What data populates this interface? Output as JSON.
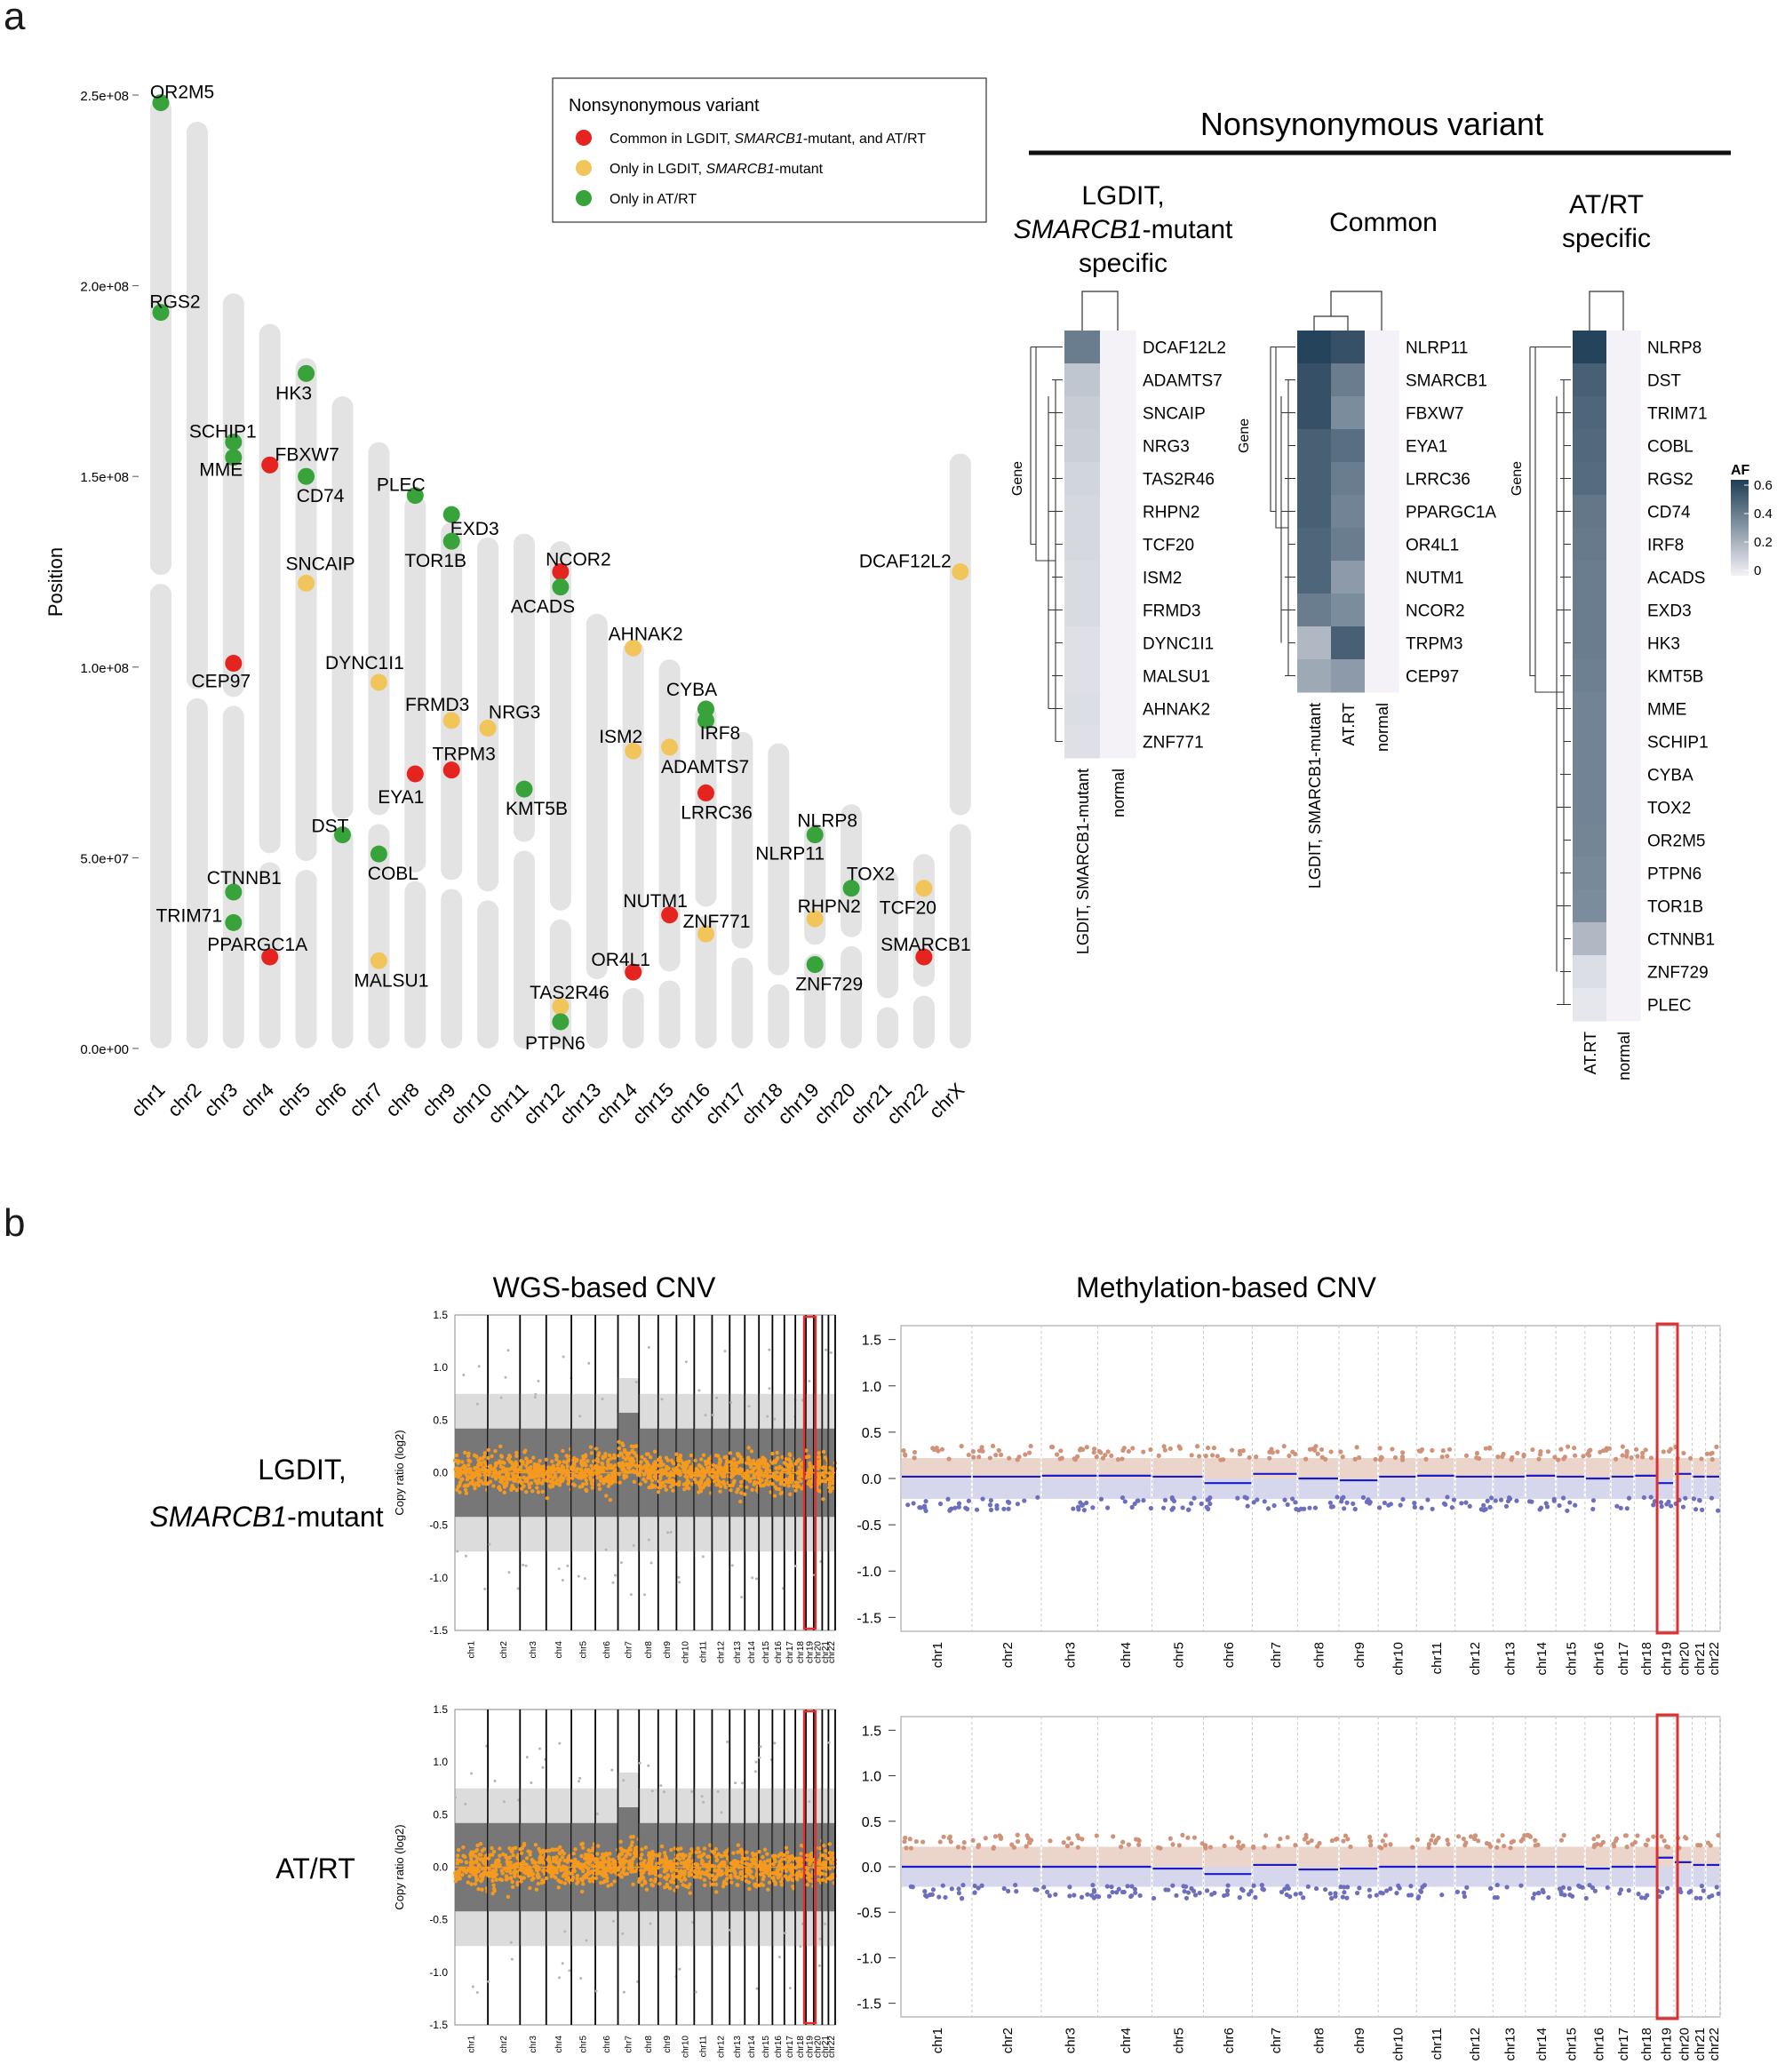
{
  "panel_labels": {
    "a": "a",
    "b": "b"
  },
  "colors": {
    "common": "#e52420",
    "lgdit": "#f2c55a",
    "atrt": "#37a33a",
    "chromosome": "#e3e3e3",
    "wgs_points": "#f59a1e",
    "highlight": "#e03030"
  },
  "ideogram": {
    "ylabel": "Position",
    "ytick_labels": [
      "0.0e+00",
      "5.0e+07",
      "1.0e+08",
      "1.5e+08",
      "2.0e+08",
      "2.5e+08"
    ]
  },
  "legend": {
    "title": "Nonsynonymous variant",
    "items": [
      {
        "pre": "Common in LGDIT, ",
        "ital": "SMARCB1",
        "post": "-mutant, and AT/RT",
        "color": "common"
      },
      {
        "pre": "Only in LGDIT, ",
        "ital": "SMARCB1",
        "post": "-mutant",
        "color": "lgdit"
      },
      {
        "pre": "Only in AT/RT",
        "ital": "",
        "post": "",
        "color": "atrt"
      }
    ]
  },
  "chart_data": [
    {
      "type": "scatter",
      "title": "Nonsynonymous variant",
      "ylabel": "Position",
      "ylim": [
        0,
        250000000
      ],
      "categories": [
        "chr1",
        "chr2",
        "chr3",
        "chr4",
        "chr5",
        "chr6",
        "chr7",
        "chr8",
        "chr9",
        "chr10",
        "chr11",
        "chr12",
        "chr13",
        "chr14",
        "chr15",
        "chr16",
        "chr17",
        "chr18",
        "chr19",
        "chr20",
        "chr21",
        "chr22",
        "chrX"
      ],
      "chrom_lengths_mb": [
        249,
        243,
        198,
        190,
        181,
        171,
        159,
        145,
        138,
        134,
        135,
        133,
        114,
        107,
        102,
        90,
        83,
        80,
        59,
        64,
        47,
        51,
        156
      ],
      "centromere_mb": [
        123,
        93,
        91,
        50,
        48,
        59,
        60,
        45,
        43,
        40,
        53,
        35,
        17,
        17,
        19,
        36,
        25,
        18,
        26,
        28,
        12,
        15,
        60
      ],
      "points": [
        {
          "gene": "OR2M5",
          "chr": 1,
          "pos_mb": 248,
          "group": "atrt"
        },
        {
          "gene": "RGS2",
          "chr": 1,
          "pos_mb": 193,
          "group": "atrt"
        },
        {
          "gene": "SCHIP1",
          "chr": 3,
          "pos_mb": 159,
          "group": "atrt"
        },
        {
          "gene": "MME",
          "chr": 3,
          "pos_mb": 155,
          "group": "atrt"
        },
        {
          "gene": "CEP97",
          "chr": 3,
          "pos_mb": 101,
          "group": "common"
        },
        {
          "gene": "CTNNB1",
          "chr": 3,
          "pos_mb": 41,
          "group": "atrt"
        },
        {
          "gene": "TRIM71",
          "chr": 3,
          "pos_mb": 33,
          "group": "atrt"
        },
        {
          "gene": "FBXW7",
          "chr": 4,
          "pos_mb": 153,
          "group": "common"
        },
        {
          "gene": "PPARGC1A",
          "chr": 4,
          "pos_mb": 24,
          "group": "common"
        },
        {
          "gene": "HK3",
          "chr": 5,
          "pos_mb": 177,
          "group": "atrt"
        },
        {
          "gene": "CD74",
          "chr": 5,
          "pos_mb": 150,
          "group": "atrt"
        },
        {
          "gene": "SNCAIP",
          "chr": 5,
          "pos_mb": 122,
          "group": "lgdit"
        },
        {
          "gene": "DST",
          "chr": 6,
          "pos_mb": 56,
          "group": "atrt"
        },
        {
          "gene": "DYNC1I1",
          "chr": 7,
          "pos_mb": 96,
          "group": "lgdit"
        },
        {
          "gene": "COBL",
          "chr": 7,
          "pos_mb": 51,
          "group": "atrt"
        },
        {
          "gene": "MALSU1",
          "chr": 7,
          "pos_mb": 23,
          "group": "lgdit"
        },
        {
          "gene": "PLEC",
          "chr": 8,
          "pos_mb": 145,
          "group": "atrt"
        },
        {
          "gene": "EYA1",
          "chr": 8,
          "pos_mb": 72,
          "group": "common"
        },
        {
          "gene": "EXD3",
          "chr": 9,
          "pos_mb": 140,
          "group": "atrt"
        },
        {
          "gene": "TOR1B",
          "chr": 9,
          "pos_mb": 133,
          "group": "atrt"
        },
        {
          "gene": "FRMD3",
          "chr": 9,
          "pos_mb": 86,
          "group": "lgdit"
        },
        {
          "gene": "TRPM3",
          "chr": 9,
          "pos_mb": 73,
          "group": "common"
        },
        {
          "gene": "NRG3",
          "chr": 10,
          "pos_mb": 84,
          "group": "lgdit"
        },
        {
          "gene": "KMT5B",
          "chr": 11,
          "pos_mb": 68,
          "group": "atrt"
        },
        {
          "gene": "NCOR2",
          "chr": 12,
          "pos_mb": 125,
          "group": "common"
        },
        {
          "gene": "ACADS",
          "chr": 12,
          "pos_mb": 121,
          "group": "atrt"
        },
        {
          "gene": "TAS2R46",
          "chr": 12,
          "pos_mb": 11,
          "group": "lgdit"
        },
        {
          "gene": "PTPN6",
          "chr": 12,
          "pos_mb": 7,
          "group": "atrt"
        },
        {
          "gene": "AHNAK2",
          "chr": 14,
          "pos_mb": 105,
          "group": "lgdit"
        },
        {
          "gene": "ISM2",
          "chr": 14,
          "pos_mb": 78,
          "group": "lgdit"
        },
        {
          "gene": "OR4L1",
          "chr": 14,
          "pos_mb": 20,
          "group": "common"
        },
        {
          "gene": "ADAMTS7",
          "chr": 15,
          "pos_mb": 79,
          "group": "lgdit"
        },
        {
          "gene": "NUTM1",
          "chr": 15,
          "pos_mb": 35,
          "group": "common"
        },
        {
          "gene": "CYBA",
          "chr": 16,
          "pos_mb": 89,
          "group": "atrt"
        },
        {
          "gene": "IRF8",
          "chr": 16,
          "pos_mb": 86,
          "group": "atrt"
        },
        {
          "gene": "LRRC36",
          "chr": 16,
          "pos_mb": 67,
          "group": "common"
        },
        {
          "gene": "ZNF771",
          "chr": 16,
          "pos_mb": 30,
          "group": "lgdit"
        },
        {
          "gene": "NLRP8",
          "chr": 19,
          "pos_mb": 56,
          "group": "atrt"
        },
        {
          "gene": "NLRP11",
          "chr": 19,
          "pos_mb": 56,
          "group": "common"
        },
        {
          "gene": "RHPN2",
          "chr": 19,
          "pos_mb": 34,
          "group": "lgdit"
        },
        {
          "gene": "ZNF729",
          "chr": 19,
          "pos_mb": 22,
          "group": "atrt"
        },
        {
          "gene": "TOX2",
          "chr": 20,
          "pos_mb": 42,
          "group": "atrt"
        },
        {
          "gene": "TCF20",
          "chr": 22,
          "pos_mb": 42,
          "group": "lgdit"
        },
        {
          "gene": "SMARCB1",
          "chr": 22,
          "pos_mb": 24,
          "group": "common"
        },
        {
          "gene": "DCAF12L2",
          "chr": 23,
          "pos_mb": 125,
          "group": "lgdit"
        }
      ]
    },
    {
      "type": "heatmap",
      "title": "Nonsynonymous variant",
      "legend_title": "AF",
      "legend_ticks": [
        "0.6",
        "0.4",
        "0.2",
        "0"
      ],
      "row_axis_label": "Gene",
      "blocks": [
        {
          "title_lines": [
            "LGDIT,",
            "SMARCB1-mutant",
            "specific"
          ],
          "columns": [
            "LGDIT, SMARCB1-mutant",
            "normal"
          ],
          "rows": [
            "DCAF12L2",
            "ADAMTS7",
            "SNCAIP",
            "NRG3",
            "TAS2R46",
            "RHPN2",
            "TCF20",
            "ISM2",
            "FRMD3",
            "DYNC1I1",
            "MALSU1",
            "AHNAK2",
            "ZNF771"
          ],
          "values": [
            [
              0.4,
              0
            ],
            [
              0.15,
              0
            ],
            [
              0.13,
              0
            ],
            [
              0.12,
              0
            ],
            [
              0.1,
              0
            ],
            [
              0.09,
              0
            ],
            [
              0.09,
              0
            ],
            [
              0.08,
              0
            ],
            [
              0.08,
              0
            ],
            [
              0.06,
              0
            ],
            [
              0.06,
              0
            ],
            [
              0.07,
              0
            ],
            [
              0.06,
              0
            ]
          ]
        },
        {
          "title_lines": [
            "Common"
          ],
          "columns": [
            "LGDIT, SMARCB1-mutant",
            "AT.RT",
            "normal"
          ],
          "rows": [
            "NLRP11",
            "SMARCB1",
            "FBXW7",
            "EYA1",
            "LRRC36",
            "PPARGC1A",
            "OR4L1",
            "NUTM1",
            "NCOR2",
            "TRPM3",
            "CEP97"
          ],
          "values": [
            [
              0.6,
              0.55,
              0
            ],
            [
              0.55,
              0.4,
              0
            ],
            [
              0.55,
              0.35,
              0
            ],
            [
              0.5,
              0.45,
              0
            ],
            [
              0.5,
              0.4,
              0
            ],
            [
              0.5,
              0.38,
              0
            ],
            [
              0.48,
              0.4,
              0
            ],
            [
              0.48,
              0.3,
              0
            ],
            [
              0.4,
              0.35,
              0
            ],
            [
              0.2,
              0.5,
              0
            ],
            [
              0.25,
              0.3,
              0
            ]
          ]
        },
        {
          "title_lines": [
            "AT/RT",
            "specific"
          ],
          "columns": [
            "AT.RT",
            "normal"
          ],
          "rows": [
            "NLRP8",
            "DST",
            "TRIM71",
            "COBL",
            "RGS2",
            "CD74",
            "IRF8",
            "ACADS",
            "EXD3",
            "HK3",
            "KMT5B",
            "MME",
            "SCHIP1",
            "CYBA",
            "TOX2",
            "OR2M5",
            "PTPN6",
            "TOR1B",
            "CTNNB1",
            "ZNF729",
            "PLEC"
          ],
          "values": [
            [
              0.6,
              0
            ],
            [
              0.5,
              0
            ],
            [
              0.48,
              0
            ],
            [
              0.47,
              0
            ],
            [
              0.46,
              0
            ],
            [
              0.42,
              0
            ],
            [
              0.41,
              0
            ],
            [
              0.4,
              0
            ],
            [
              0.4,
              0
            ],
            [
              0.4,
              0
            ],
            [
              0.39,
              0
            ],
            [
              0.38,
              0
            ],
            [
              0.38,
              0
            ],
            [
              0.38,
              0
            ],
            [
              0.38,
              0
            ],
            [
              0.37,
              0
            ],
            [
              0.36,
              0
            ],
            [
              0.35,
              0
            ],
            [
              0.2,
              0
            ],
            [
              0.07,
              0
            ],
            [
              0.04,
              0
            ]
          ]
        }
      ]
    },
    {
      "type": "scatter",
      "title": "WGS-based CNV",
      "ylabel": "Copy ratio (log2)",
      "ylim": [
        -1.5,
        1.5
      ],
      "yticks": [
        "1.5",
        "1.0",
        "0.5",
        "0.0",
        "-0.5",
        "-1.0",
        "-1.5"
      ],
      "chromosomes": [
        "chr1",
        "chr2",
        "chr3",
        "chr4",
        "chr5",
        "chr6",
        "chr7",
        "chr8",
        "chr9",
        "chr10",
        "chr11",
        "chr12",
        "chr13",
        "chr14",
        "chr15",
        "chr16",
        "chr17",
        "chr18",
        "chr19",
        "chr20",
        "chr21",
        "chr22"
      ],
      "highlight": "chr19",
      "samples": [
        "LGDIT, SMARCB1-mutant",
        "AT/RT"
      ]
    },
    {
      "type": "scatter",
      "title": "Methylation-based CNV",
      "ylim": [
        -1.5,
        1.5
      ],
      "yticks": [
        "1.5",
        "1.0",
        "0.5",
        "0.0",
        "-0.5",
        "-1.0",
        "-1.5"
      ],
      "chromosomes": [
        "chr1",
        "chr2",
        "chr3",
        "chr4",
        "chr5",
        "chr6",
        "chr7",
        "chr8",
        "chr9",
        "chr10",
        "chr11",
        "chr12",
        "chr13",
        "chr14",
        "chr15",
        "chr16",
        "chr17",
        "chr18",
        "chr19",
        "chr20",
        "chr21",
        "chr22"
      ],
      "highlight": "chr19",
      "segment_levels": {
        "LGDIT, SMARCB1-mutant": [
          0.02,
          0.02,
          0.03,
          0.03,
          0.02,
          -0.05,
          0.05,
          0.0,
          -0.02,
          0.02,
          0.03,
          0.02,
          0.02,
          0.03,
          0.02,
          0.0,
          0.02,
          0.03,
          -0.05,
          0.05,
          0.02,
          0.02
        ],
        "AT/RT": [
          0.0,
          0.0,
          0.0,
          0.0,
          -0.02,
          -0.08,
          0.02,
          -0.03,
          -0.02,
          0.0,
          0.0,
          0.0,
          0.0,
          0.0,
          0.0,
          -0.02,
          0.0,
          0.0,
          0.1,
          0.05,
          0.02,
          0.02
        ]
      }
    }
  ],
  "panel_b": {
    "wgs_title": "WGS-based CNV",
    "meth_title": "Methylation-based CNV",
    "row_labels": [
      {
        "line1": "LGDIT,",
        "ital": "SMARCB1",
        "post": "-mutant"
      },
      {
        "line1": "AT/RT",
        "ital": "",
        "post": ""
      }
    ],
    "ylabel": "Copy ratio (log2)"
  }
}
